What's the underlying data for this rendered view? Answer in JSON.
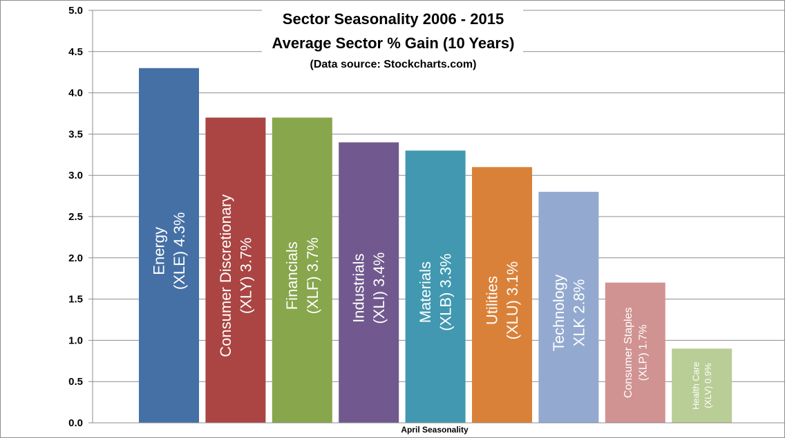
{
  "chart_data": {
    "type": "bar",
    "title": "Sector Seasonality  2006 - 2015",
    "subtitle": "Average Sector % Gain (10 Years)",
    "source_note": "(Data source: Stockcharts.com)",
    "xlabel": "April Seasonality",
    "ylabel": "",
    "ylim": [
      0,
      5
    ],
    "yticks": [
      "0.0",
      "0.5",
      "1.0",
      "1.5",
      "2.0",
      "2.5",
      "3.0",
      "3.5",
      "4.0",
      "4.5",
      "5.0"
    ],
    "grid": true,
    "legend": "none",
    "bars": [
      {
        "line1": "Energy",
        "line2": "(XLE)  4.3%",
        "value": 4.3,
        "color": "#4470a6"
      },
      {
        "line1": "Consumer Discretionary",
        "line2": "(XLY)  3.7%",
        "value": 3.7,
        "color": "#aa4543"
      },
      {
        "line1": "Financials",
        "line2": "(XLF)  3.7%",
        "value": 3.7,
        "color": "#88a64c"
      },
      {
        "line1": "Industrials",
        "line2": "(XLI)  3.4%",
        "value": 3.4,
        "color": "#71598f"
      },
      {
        "line1": "Materials",
        "line2": "(XLB) 3.3%",
        "value": 3.3,
        "color": "#4198b0"
      },
      {
        "line1": "Utilities",
        "line2": "(XLU)  3.1%",
        "value": 3.1,
        "color": "#da8139"
      },
      {
        "line1": "Technology",
        "line2": "XLK  2.8%",
        "value": 2.8,
        "color": "#93a9cf"
      },
      {
        "line1": "Consumer Staples",
        "line2": "(XLP)  1.7%",
        "value": 1.7,
        "color": "#d09392"
      },
      {
        "line1": "Health Care",
        "line2": "(XLV)  0.9%",
        "value": 0.9,
        "color": "#b9cd96"
      }
    ]
  }
}
